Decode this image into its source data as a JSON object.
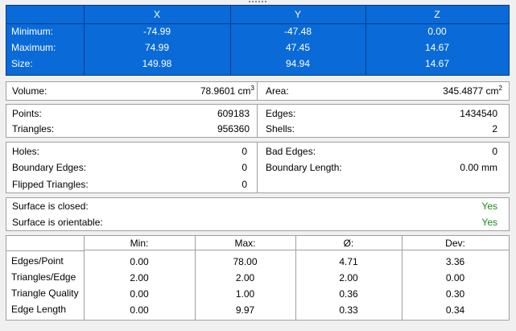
{
  "dimensions": {
    "columns": [
      "X",
      "Y",
      "Z"
    ],
    "rows": [
      {
        "label": "Minimum:",
        "values": [
          "-74.99",
          "-47.48",
          "0.00"
        ]
      },
      {
        "label": "Maximum:",
        "values": [
          "74.99",
          "47.45",
          "14.67"
        ]
      },
      {
        "label": "Size:",
        "values": [
          "149.98",
          "94.94",
          "14.67"
        ]
      }
    ]
  },
  "measures": {
    "volume_label": "Volume:",
    "volume_value": "78.9601 cm",
    "volume_unit_exp": "3",
    "area_label": "Area:",
    "area_value": "345.4877 cm",
    "area_unit_exp": "2"
  },
  "counts": {
    "points_label": "Points:",
    "points_value": "609183",
    "triangles_label": "Triangles:",
    "triangles_value": "956360",
    "edges_label": "Edges:",
    "edges_value": "1434540",
    "shells_label": "Shells:",
    "shells_value": "2"
  },
  "defects": {
    "holes_label": "Holes:",
    "holes_value": "0",
    "boundary_edges_label": "Boundary Edges:",
    "boundary_edges_value": "0",
    "flipped_label": "Flipped Triangles:",
    "flipped_value": "0",
    "bad_edges_label": "Bad Edges:",
    "bad_edges_value": "0",
    "boundary_length_label": "Boundary Length:",
    "boundary_length_value": "0.00 mm"
  },
  "surface": {
    "closed_label": "Surface is closed:",
    "closed_value": "Yes",
    "orientable_label": "Surface is orientable:",
    "orientable_value": "Yes",
    "value_color": "#1a8a1a"
  },
  "stats": {
    "headers": [
      "Min:",
      "Max:",
      "Ø:",
      "Dev:"
    ],
    "rows": [
      {
        "label": "Edges/Point",
        "values": [
          "0.00",
          "78.00",
          "4.71",
          "3.36"
        ]
      },
      {
        "label": "Triangles/Edge",
        "values": [
          "2.00",
          "2.00",
          "2.00",
          "0.00"
        ]
      },
      {
        "label": "Triangle Quality",
        "values": [
          "0.00",
          "1.00",
          "0.36",
          "0.30"
        ]
      },
      {
        "label": "Edge Length",
        "values": [
          "0.00",
          "9.97",
          "0.33",
          "0.34"
        ]
      }
    ]
  },
  "colors": {
    "header_bg": "#0a6ad8",
    "header_border": "#003c8a",
    "panel_border": "#a0a0a0"
  }
}
